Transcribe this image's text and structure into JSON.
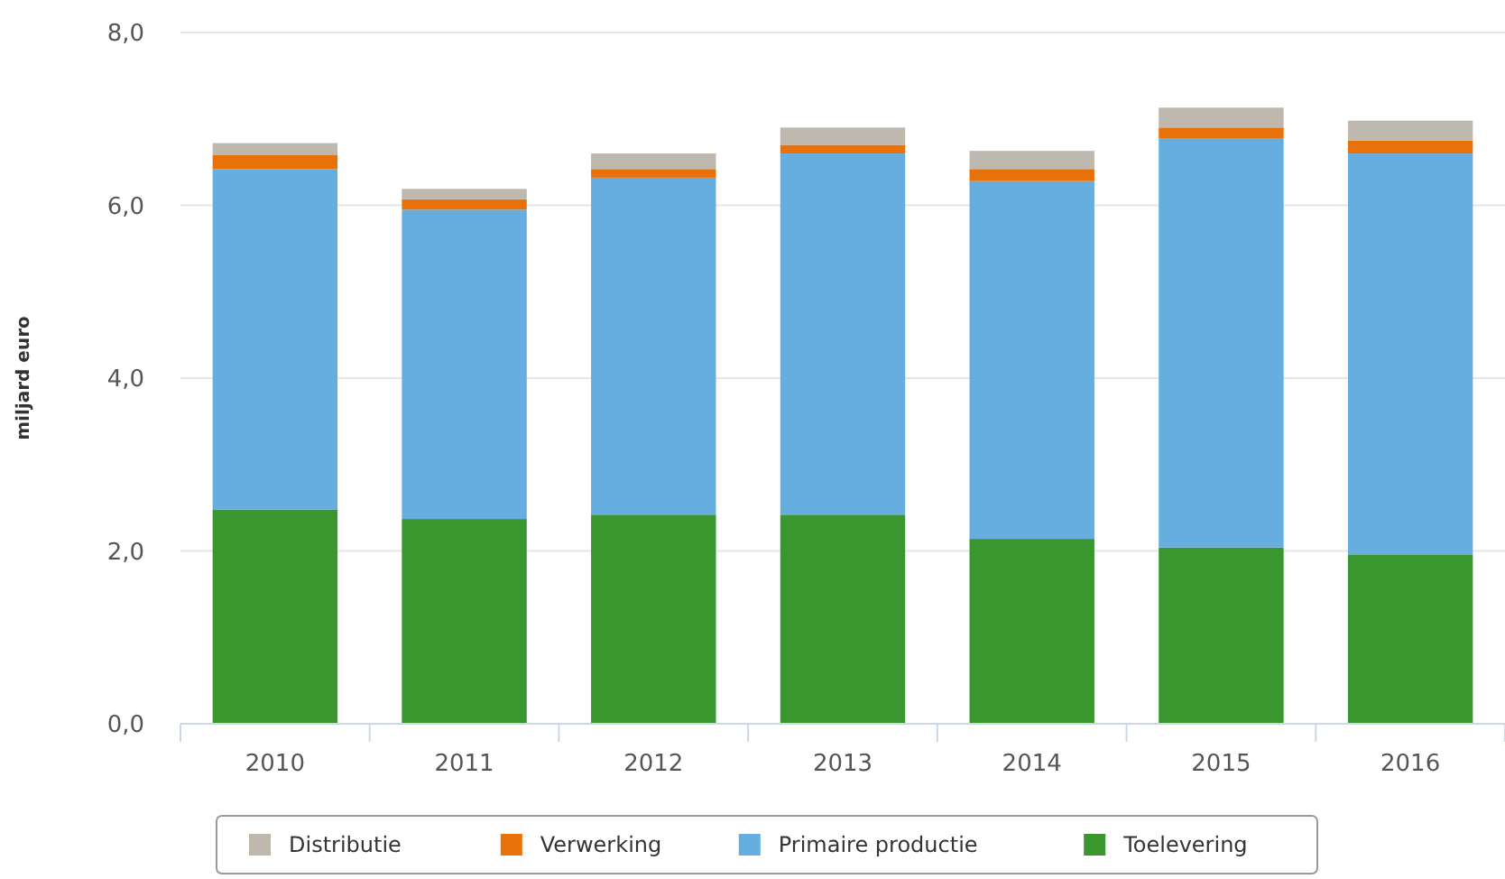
{
  "chart_data": {
    "type": "bar",
    "stacked": true,
    "ylabel": "miljard euro",
    "categories": [
      "2010",
      "2011",
      "2012",
      "2013",
      "2014",
      "2015",
      "2016"
    ],
    "series": [
      {
        "name": "Toelevering",
        "color": "#3a962f",
        "values": [
          2.48,
          2.37,
          2.42,
          2.42,
          2.14,
          2.04,
          1.96
        ]
      },
      {
        "name": "Primaire productie",
        "color": "#66aee0",
        "values": [
          3.94,
          3.58,
          3.9,
          4.18,
          4.14,
          4.73,
          4.64
        ]
      },
      {
        "name": "Verwerking",
        "color": "#e8710a",
        "values": [
          0.16,
          0.12,
          0.1,
          0.1,
          0.14,
          0.13,
          0.15
        ]
      },
      {
        "name": "Distributie",
        "color": "#bfb8af",
        "values": [
          0.14,
          0.12,
          0.18,
          0.2,
          0.21,
          0.23,
          0.23
        ]
      }
    ],
    "ylim": [
      0,
      8
    ],
    "yticks": [
      {
        "value": 0,
        "label": "0,0"
      },
      {
        "value": 2,
        "label": "2,0"
      },
      {
        "value": 4,
        "label": "4,0"
      },
      {
        "value": 6,
        "label": "6,0"
      },
      {
        "value": 8,
        "label": "8,0"
      }
    ],
    "grid": "y",
    "legend": "bottom"
  }
}
